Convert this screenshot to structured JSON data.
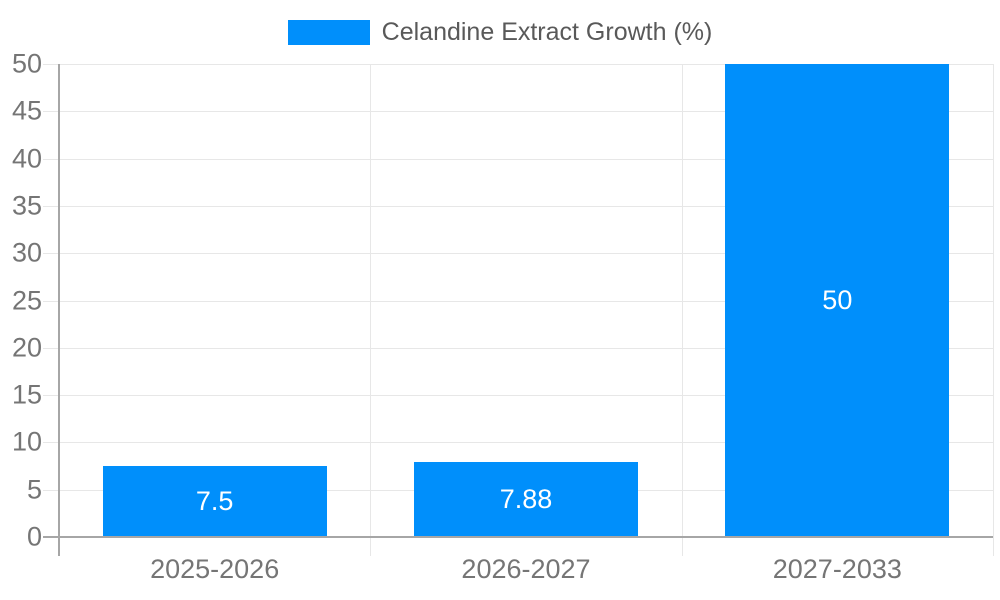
{
  "legend": {
    "label": "Celandine Extract Growth (%)"
  },
  "chart_data": {
    "type": "bar",
    "title": "Celandine Extract Growth (%)",
    "categories": [
      "2025-2026",
      "2026-2027",
      "2027-2033"
    ],
    "series": [
      {
        "name": "Celandine Extract Growth (%)",
        "values": [
          7.5,
          7.88,
          50
        ]
      }
    ],
    "value_labels": [
      "7.5",
      "7.88",
      "50"
    ],
    "xlabel": "",
    "ylabel": "",
    "ylim": [
      0,
      50
    ],
    "yticks": [
      0,
      5,
      10,
      15,
      20,
      25,
      30,
      35,
      40,
      45,
      50
    ],
    "grid": true,
    "legend_position": "top-center",
    "colors": {
      "bar": "#008FFB",
      "grid": "#e7e7e7",
      "axis": "#a6a6a6",
      "tick_label": "#757575",
      "legend_text": "#595959",
      "value_label": "#ffffff",
      "background": "#ffffff"
    }
  }
}
